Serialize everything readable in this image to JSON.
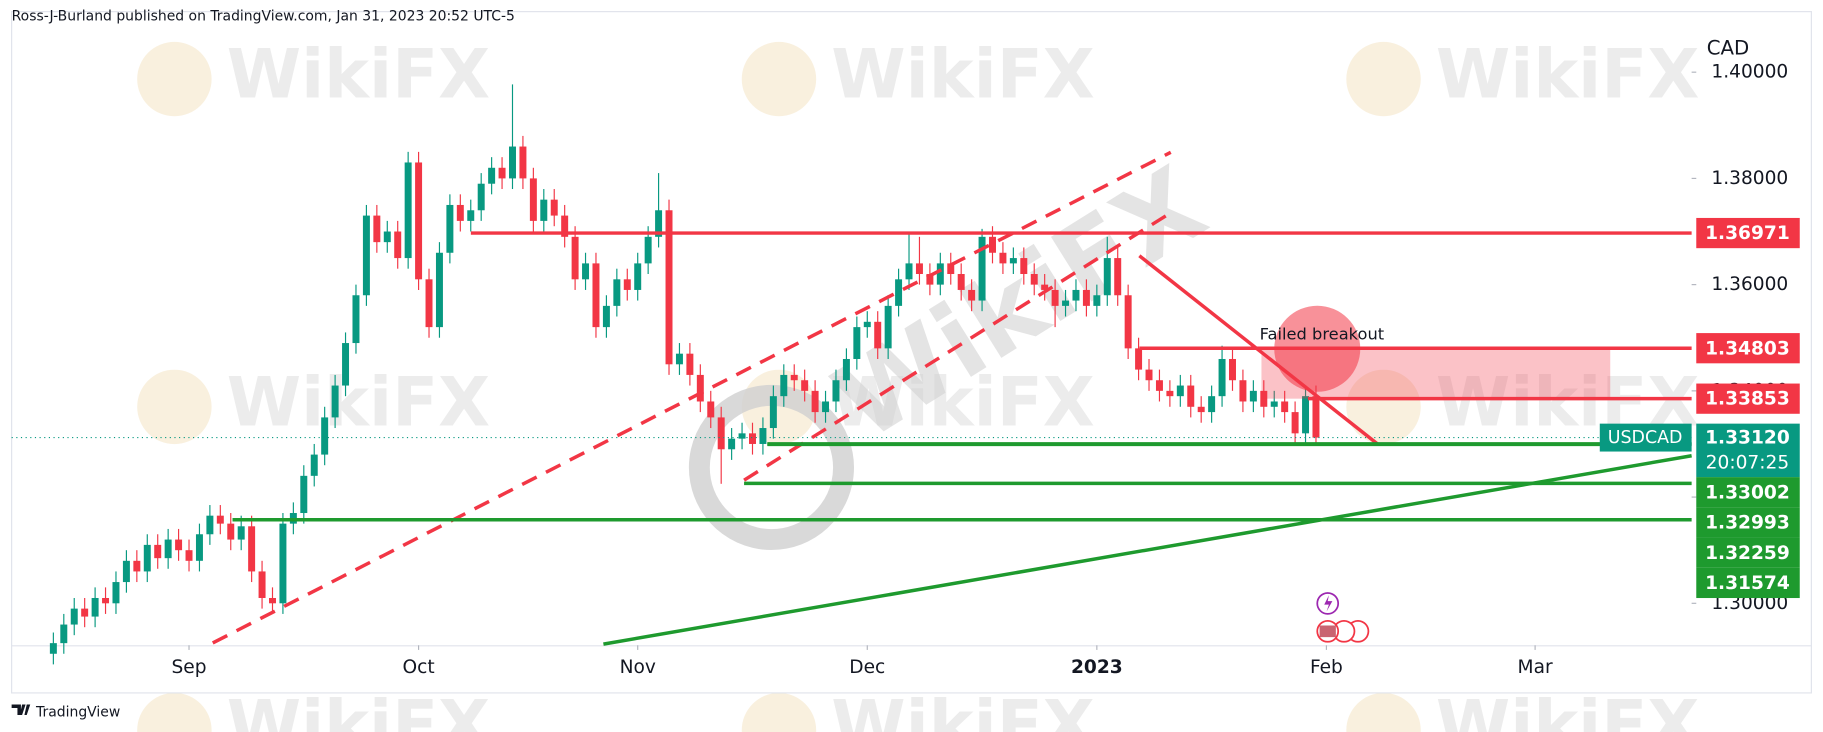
{
  "chart_data": {
    "type": "candlestick",
    "header": "Ross-J-Burland published on TradingView.com, Jan 31, 2023 20:52 UTC-5",
    "currency": "CAD",
    "symbol": "USDCAD",
    "last_price": {
      "value": 1.3312,
      "label": "1.33120"
    },
    "countdown": "20:07:25",
    "annotation": "Failed breakout",
    "watermark": "WikiFX",
    "footer": "TradingView",
    "up_color": "#089981",
    "down_color": "#f23645",
    "xlim": [
      -4,
      157
    ],
    "xticks": [
      {
        "value": 13,
        "label": "Sep"
      },
      {
        "value": 35,
        "label": "Oct"
      },
      {
        "value": 56,
        "label": "Nov"
      },
      {
        "value": 78,
        "label": "Dec"
      },
      {
        "value": 100,
        "label": "2023"
      },
      {
        "value": 122,
        "label": "Feb"
      },
      {
        "value": 142,
        "label": "Mar"
      }
    ],
    "ylim": [
      1.2921,
      1.4114
    ],
    "yticks": [
      {
        "value": 1.4,
        "label": "1.40000"
      },
      {
        "value": 1.38,
        "label": "1.38000"
      },
      {
        "value": 1.36,
        "label": "1.36000"
      },
      {
        "value": 1.34,
        "label": "1.34000"
      },
      {
        "value": 1.32,
        "label": "1.32000"
      },
      {
        "value": 1.3,
        "label": "1.30000"
      }
    ],
    "levels": [
      {
        "price": 1.36971,
        "color": "#f23645"
      },
      {
        "price": 1.34803,
        "color": "#f23645"
      },
      {
        "price": 1.33853,
        "color": "#f23645"
      },
      {
        "price": 1.33002,
        "color": "#1e9a2e"
      },
      {
        "price": 1.32993,
        "color": "#1e9a2e"
      },
      {
        "price": 1.32259,
        "color": "#1e9a2e"
      },
      {
        "price": 1.31574,
        "color": "#1e9a2e"
      }
    ],
    "open": [
      1.2905,
      1.2925,
      1.296,
      1.299,
      1.2975,
      1.301,
      1.3,
      1.304,
      1.308,
      1.306,
      1.311,
      1.3085,
      1.312,
      1.31,
      1.308,
      1.313,
      1.3165,
      1.315,
      1.312,
      1.3145,
      1.306,
      1.301,
      1.3,
      1.315,
      1.317,
      1.324,
      1.328,
      1.335,
      1.341,
      1.349,
      1.358,
      1.373,
      1.368,
      1.37,
      1.365,
      1.383,
      1.361,
      1.352,
      1.366,
      1.375,
      1.372,
      1.374,
      1.379,
      1.382,
      1.38,
      1.386,
      1.38,
      1.372,
      1.376,
      1.373,
      1.369,
      1.361,
      1.364,
      1.352,
      1.356,
      1.361,
      1.359,
      1.364,
      1.369,
      1.374,
      1.345,
      1.347,
      1.343,
      1.338,
      1.335,
      1.329,
      1.331,
      1.332,
      1.33,
      1.333,
      1.339,
      1.343,
      1.342,
      1.34,
      1.336,
      1.338,
      1.342,
      1.346,
      1.352,
      1.353,
      1.348,
      1.356,
      1.361,
      1.364,
      1.362,
      1.36,
      1.364,
      1.362,
      1.359,
      1.357,
      1.369,
      1.366,
      1.364,
      1.365,
      1.362,
      1.36,
      1.359,
      1.356,
      1.357,
      1.359,
      1.356,
      1.358,
      1.365,
      1.358,
      1.348,
      1.344,
      1.342,
      1.34,
      1.339,
      1.341,
      1.337,
      1.336,
      1.339,
      1.346,
      1.342,
      1.338,
      1.34,
      1.337,
      1.338,
      1.336,
      1.332,
      1.339
    ],
    "high": [
      1.2945,
      1.298,
      1.301,
      1.301,
      1.303,
      1.303,
      1.306,
      1.31,
      1.31,
      1.313,
      1.313,
      1.314,
      1.314,
      1.312,
      1.315,
      1.3185,
      1.3185,
      1.317,
      1.3165,
      1.3165,
      1.308,
      1.303,
      1.317,
      1.319,
      1.326,
      1.33,
      1.337,
      1.343,
      1.351,
      1.36,
      1.375,
      1.375,
      1.372,
      1.372,
      1.385,
      1.385,
      1.363,
      1.368,
      1.377,
      1.377,
      1.376,
      1.381,
      1.384,
      1.384,
      1.3977,
      1.388,
      1.382,
      1.378,
      1.378,
      1.375,
      1.371,
      1.366,
      1.366,
      1.358,
      1.363,
      1.363,
      1.366,
      1.371,
      1.381,
      1.376,
      1.349,
      1.349,
      1.345,
      1.34,
      1.337,
      1.333,
      1.334,
      1.334,
      1.335,
      1.341,
      1.345,
      1.345,
      1.344,
      1.342,
      1.34,
      1.344,
      1.348,
      1.354,
      1.355,
      1.355,
      1.358,
      1.363,
      1.37,
      1.369,
      1.364,
      1.366,
      1.366,
      1.364,
      1.361,
      1.3705,
      1.371,
      1.368,
      1.367,
      1.367,
      1.364,
      1.362,
      1.361,
      1.359,
      1.361,
      1.361,
      1.36,
      1.369,
      1.367,
      1.36,
      1.35,
      1.346,
      1.344,
      1.342,
      1.343,
      1.343,
      1.339,
      1.341,
      1.3485,
      1.348,
      1.344,
      1.342,
      1.342,
      1.34,
      1.34,
      1.338,
      1.341,
      1.341
    ],
    "low": [
      1.2885,
      1.2905,
      1.294,
      1.2955,
      1.2955,
      1.298,
      1.298,
      1.302,
      1.304,
      1.304,
      1.3065,
      1.3065,
      1.308,
      1.306,
      1.306,
      1.311,
      1.313,
      1.31,
      1.31,
      1.304,
      1.299,
      1.298,
      1.298,
      1.313,
      1.315,
      1.322,
      1.326,
      1.333,
      1.339,
      1.347,
      1.356,
      1.366,
      1.366,
      1.363,
      1.363,
      1.359,
      1.35,
      1.35,
      1.364,
      1.37,
      1.37,
      1.372,
      1.377,
      1.378,
      1.378,
      1.378,
      1.37,
      1.37,
      1.371,
      1.367,
      1.359,
      1.359,
      1.35,
      1.35,
      1.354,
      1.357,
      1.357,
      1.362,
      1.367,
      1.343,
      1.343,
      1.341,
      1.336,
      1.333,
      1.3225,
      1.327,
      1.329,
      1.328,
      1.328,
      1.331,
      1.337,
      1.34,
      1.338,
      1.334,
      1.334,
      1.336,
      1.34,
      1.344,
      1.35,
      1.346,
      1.346,
      1.354,
      1.359,
      1.36,
      1.358,
      1.358,
      1.36,
      1.357,
      1.355,
      1.355,
      1.364,
      1.362,
      1.362,
      1.36,
      1.358,
      1.357,
      1.352,
      1.354,
      1.355,
      1.354,
      1.354,
      1.356,
      1.356,
      1.346,
      1.342,
      1.34,
      1.338,
      1.337,
      1.337,
      1.335,
      1.334,
      1.334,
      1.337,
      1.34,
      1.336,
      1.336,
      1.335,
      1.335,
      1.334,
      1.33,
      1.33,
      1.33
    ],
    "close": [
      1.2925,
      1.296,
      1.299,
      1.2975,
      1.301,
      1.3,
      1.304,
      1.308,
      1.306,
      1.311,
      1.3085,
      1.312,
      1.31,
      1.308,
      1.313,
      1.3165,
      1.315,
      1.312,
      1.3145,
      1.306,
      1.301,
      1.3,
      1.315,
      1.317,
      1.324,
      1.328,
      1.335,
      1.341,
      1.349,
      1.358,
      1.373,
      1.368,
      1.37,
      1.365,
      1.383,
      1.361,
      1.352,
      1.366,
      1.375,
      1.372,
      1.374,
      1.379,
      1.382,
      1.38,
      1.386,
      1.38,
      1.372,
      1.376,
      1.373,
      1.369,
      1.361,
      1.364,
      1.352,
      1.356,
      1.361,
      1.359,
      1.364,
      1.369,
      1.374,
      1.345,
      1.347,
      1.343,
      1.338,
      1.335,
      1.329,
      1.331,
      1.332,
      1.33,
      1.333,
      1.339,
      1.343,
      1.342,
      1.34,
      1.336,
      1.338,
      1.342,
      1.346,
      1.352,
      1.353,
      1.348,
      1.356,
      1.361,
      1.364,
      1.362,
      1.36,
      1.364,
      1.362,
      1.359,
      1.357,
      1.369,
      1.366,
      1.364,
      1.365,
      1.362,
      1.36,
      1.359,
      1.356,
      1.357,
      1.359,
      1.356,
      1.358,
      1.365,
      1.358,
      1.348,
      1.344,
      1.342,
      1.34,
      1.339,
      1.341,
      1.337,
      1.336,
      1.339,
      1.346,
      1.342,
      1.338,
      1.34,
      1.337,
      1.338,
      1.336,
      1.332,
      1.339,
      1.3312
    ]
  }
}
